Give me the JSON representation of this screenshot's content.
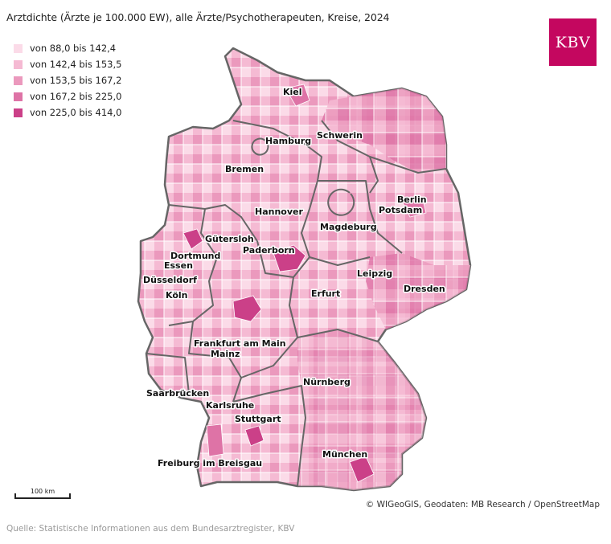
{
  "title": "Arztdichte (Ärzte je 100.000 EW), alle Ärzte/Psychotherapeuten, Kreise, 2024",
  "legend": [
    {
      "label": "von 88,0 bis 142,4",
      "color": "#fbdbe8"
    },
    {
      "label": "von 142,4 bis 153,5",
      "color": "#f5bad3"
    },
    {
      "label": "von 153,5 bis 167,2",
      "color": "#eb99bd"
    },
    {
      "label": "von 167,2 bis 225,0",
      "color": "#de73a6"
    },
    {
      "label": "von 225,0 bis 414,0",
      "color": "#cb4088"
    }
  ],
  "logo": {
    "text": "KBV",
    "color": "#c4075f"
  },
  "cities": [
    {
      "name": "Kiel"
    },
    {
      "name": "Hamburg"
    },
    {
      "name": "Schwerin"
    },
    {
      "name": "Bremen"
    },
    {
      "name": "Berlin"
    },
    {
      "name": "Potsdam"
    },
    {
      "name": "Hannover"
    },
    {
      "name": "Magdeburg"
    },
    {
      "name": "Gütersloh"
    },
    {
      "name": "Paderborn"
    },
    {
      "name": "Dortmund"
    },
    {
      "name": "Essen"
    },
    {
      "name": "Düsseldorf"
    },
    {
      "name": "Leipzig"
    },
    {
      "name": "Dresden"
    },
    {
      "name": "Köln"
    },
    {
      "name": "Erfurt"
    },
    {
      "name": "Frankfurt am Main"
    },
    {
      "name": "Mainz"
    },
    {
      "name": "Nürnberg"
    },
    {
      "name": "Saarbrücken"
    },
    {
      "name": "Karlsruhe"
    },
    {
      "name": "Stuttgart"
    },
    {
      "name": "Freiburg im Breisgau"
    },
    {
      "name": "München"
    }
  ],
  "scalebar": {
    "label": "100 km"
  },
  "copyright": "© WIGeoGIS, Geodaten: MB Research / OpenStreetMap",
  "source": "Quelle: Statistische Informationen aus dem Bundesarztregister, KBV"
}
